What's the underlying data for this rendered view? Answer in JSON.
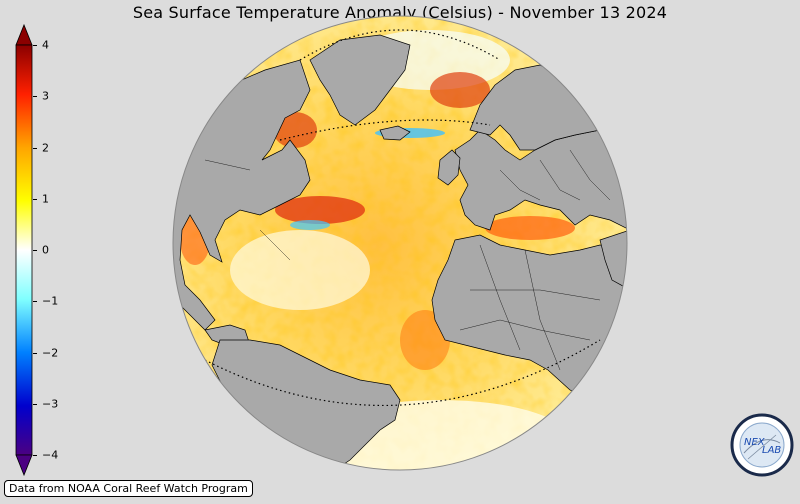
{
  "title": "Sea Surface Temperature Anomaly (Celsius) - November 13 2024",
  "colorbar": {
    "ticks": [
      {
        "value": 4,
        "label": "4"
      },
      {
        "value": 3,
        "label": "3"
      },
      {
        "value": 2,
        "label": "2"
      },
      {
        "value": 1,
        "label": "1"
      },
      {
        "value": 0,
        "label": "0"
      },
      {
        "value": -1,
        "label": "−1"
      },
      {
        "value": -2,
        "label": "−2"
      },
      {
        "value": -3,
        "label": "−3"
      },
      {
        "value": -4,
        "label": "−4"
      }
    ],
    "range": [
      -4,
      4
    ],
    "colors": [
      "#4b0082",
      "#0000ff",
      "#00aaff",
      "#ffffff",
      "#ffff00",
      "#ff8800",
      "#ff0000",
      "#8b0000"
    ]
  },
  "credit": "Data from NOAA Coral Reef Watch Program",
  "logo_text": {
    "left": "NEX",
    "right": "LAB"
  },
  "colors": {
    "background": "#dcdcdc",
    "land": "#a9a9a9",
    "ocean_base": "#ffd24a"
  }
}
